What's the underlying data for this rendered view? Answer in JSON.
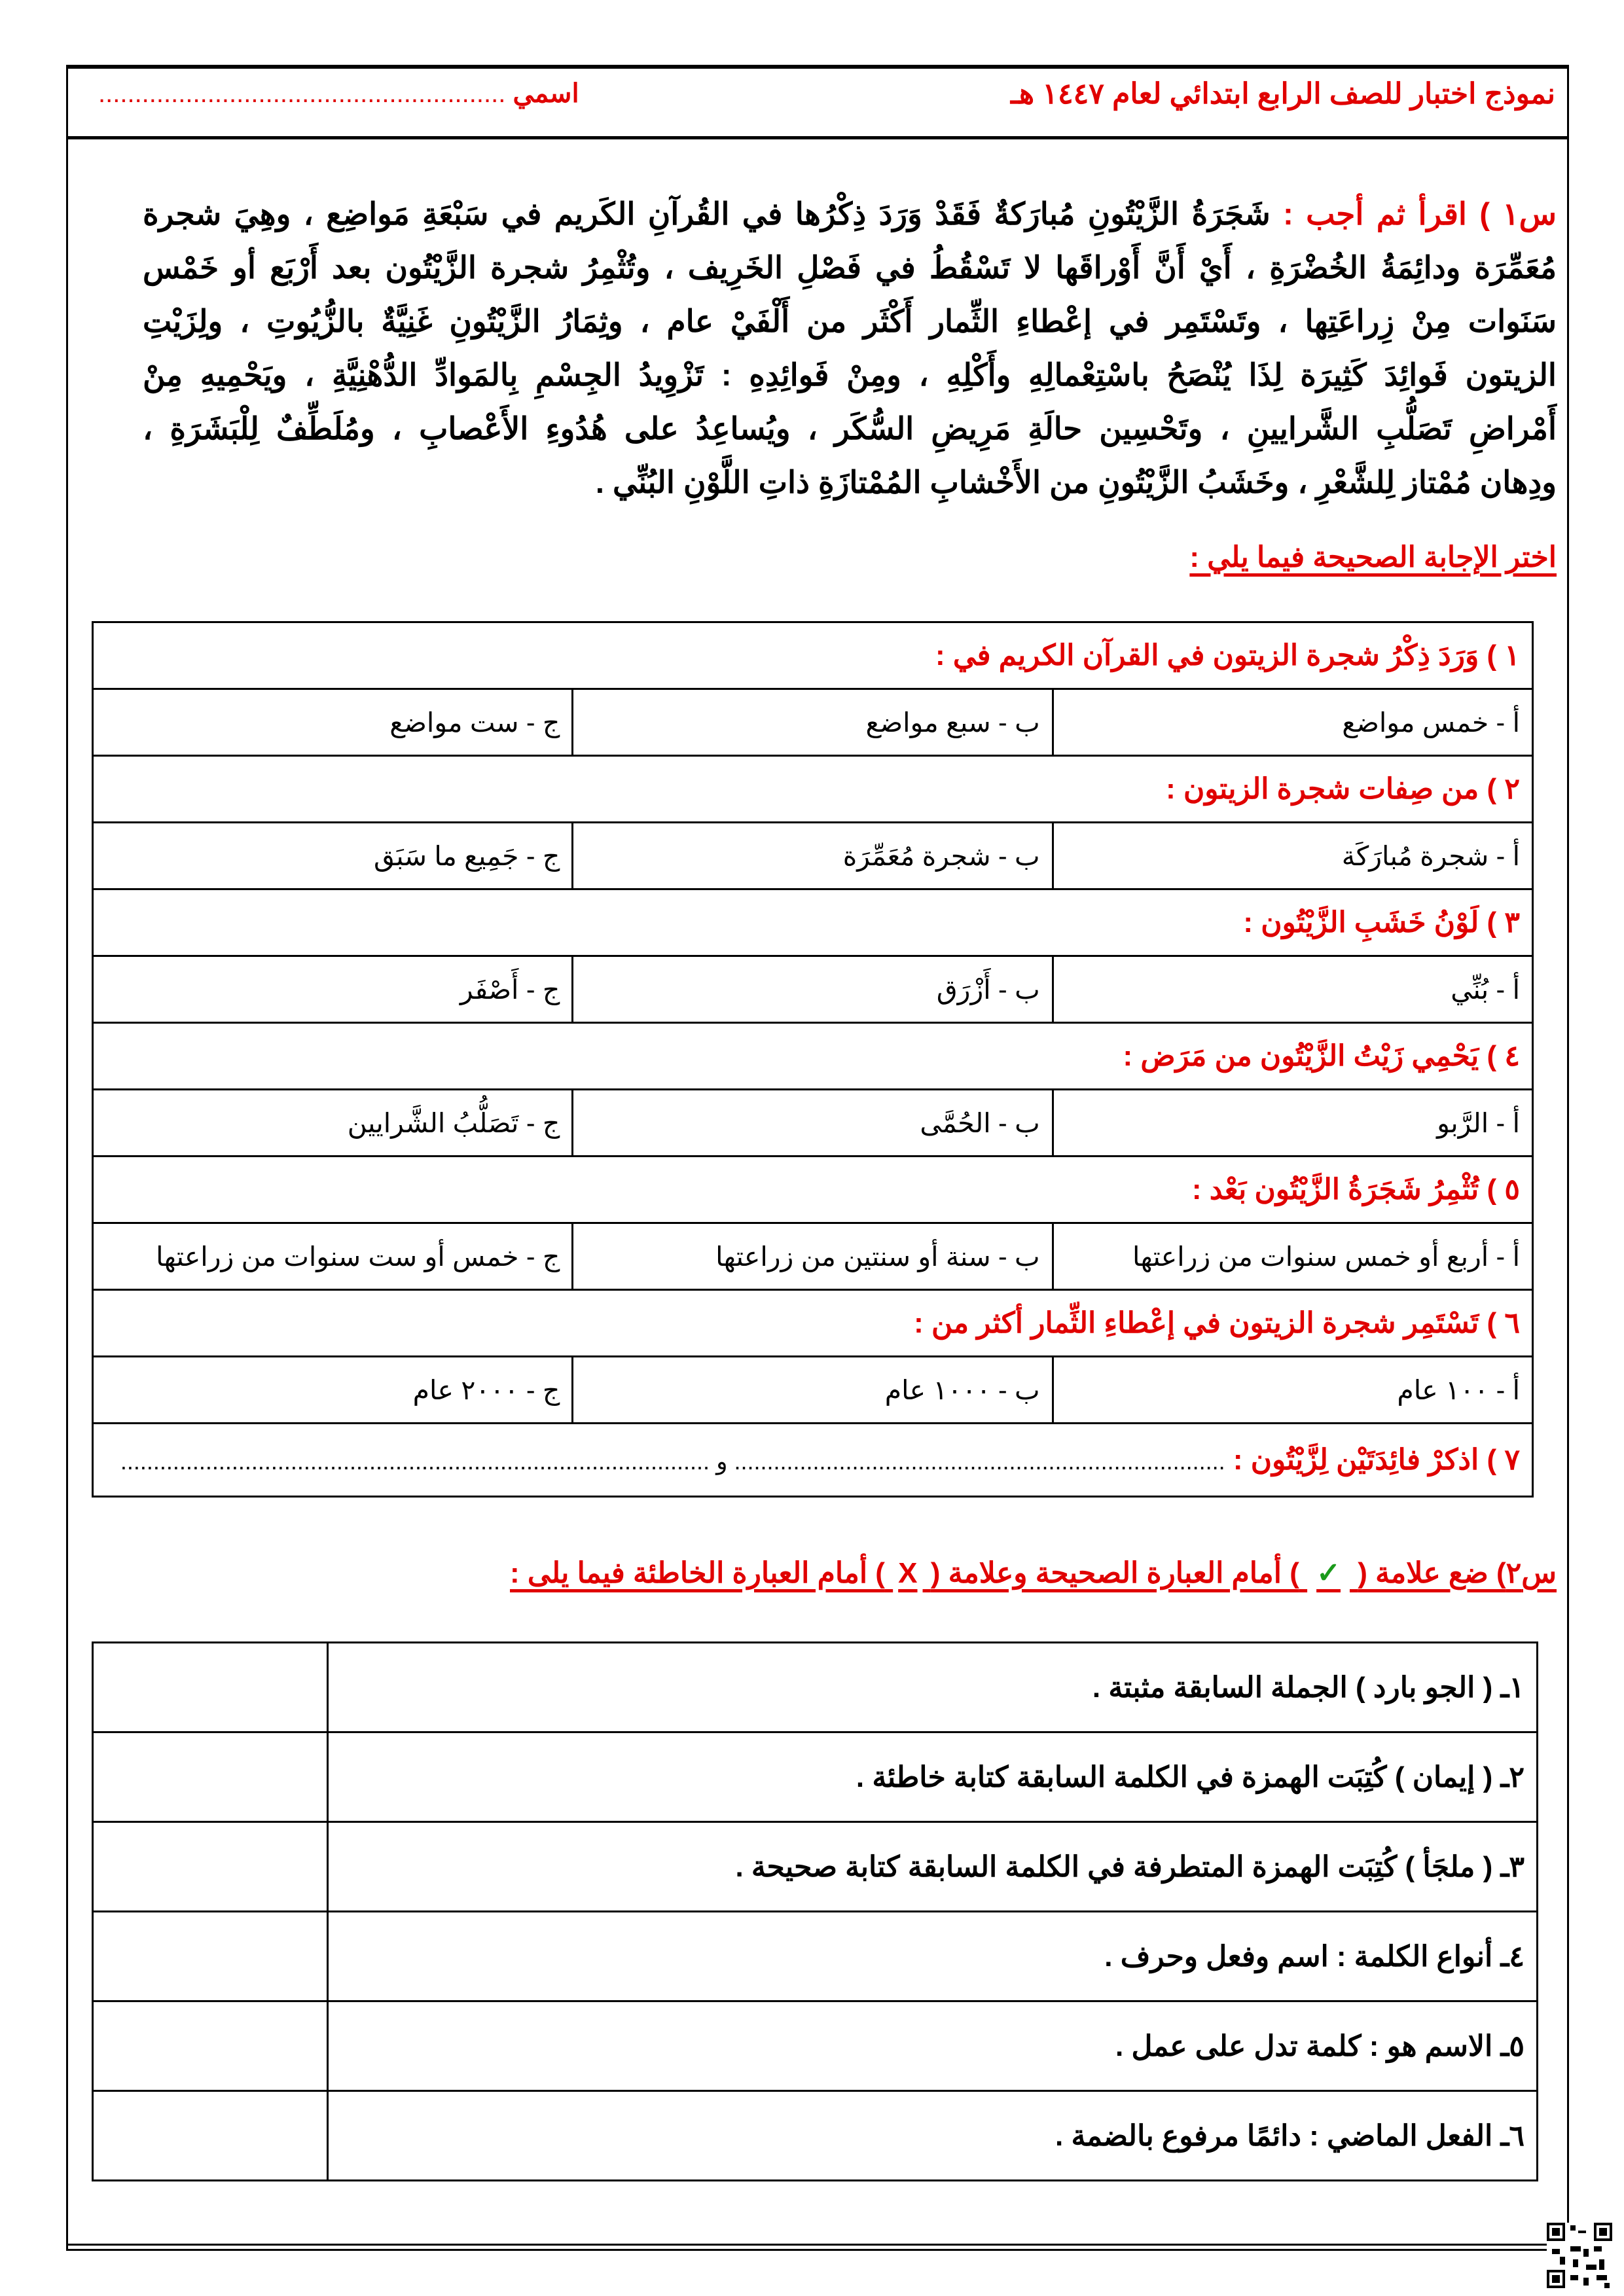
{
  "header": {
    "title": "نموذج اختبار للصف الرابع ابتدائي لعام ١٤٤٧ هـ",
    "name_label": "اسمي",
    "name_dots": "........................................................"
  },
  "q1": {
    "label": "س١ ) اقرأ ثم أجب : ",
    "lines": [
      "شَجَرَةُ الزَّيْتُونِ مُبارَكةٌ فَقَدْ وَرَدَ ذِكْرُها في القُرآنِ الكَريم في سَبْعَةِ مَواضِع ، وهِيَ شجرة",
      "مُعَمِّرَة ودائِمَةُ الخُضْرَةِ ، أَيْ أَنَّ أَوْراقَها لا تَسْقُطُ في فَصْلِ الخَرِيف ، وتُثْمِرُ شجرة الزَّيْتُون بعد أَرْبَع أو خَمْس",
      "سَنَوات مِنْ زِراعَتِها ، وتَسْتَمِر في إعْطاءِ الثِّمار أَكْثَر من أَلْفَيْ عام ، وثِمَارُ الزَّيْتُونِ غَنِيَّةٌ بالزُّيُوتِ ، ولِزَيْتِ",
      "الزيتون فَوائِدَ كَثِيرَة لِذَا يُنْصَحُ باسْتِعْمالِهِ وأَكْلِهِ ، ومِنْ فَوائِدِهِ : تَزْوِيدُ الجِسْمِ بِالمَوادِّ الدُّهْنِيَّةِ ، ويَحْمِيهِ مِنْ",
      "أَمْراضِ تَصَلُّبِ الشَّرايينِ ، وتَحْسِين حالَةِ مَرِيضِ السُّكَر ، ويُساعِدُ على هُدُوءِ الأَعْصابِ ، ومُلَطِّفٌ لِلْبَشَرَةِ ،",
      "ودِهان مُمْتاز لِلشَّعْرِ ، وخَشَبُ الزَّيْتُونِ من الأَخْشابِ المُمْتازَةِ ذاتِ اللَّوْنِ البُنِّي  ."
    ],
    "instruction": "اختر الإجابة الصحيحة فيما يلي :",
    "questions": [
      {
        "text": "١ ) وَرَدَ ذِكْرُ شجرة الزيتون في القرآن الكريم في :",
        "options": [
          "أ - خمس مواضع",
          "ب - سبع مواضع",
          "ج - ست مواضع"
        ]
      },
      {
        "text": "٢ ) من صِفات شجرة الزيتون :",
        "options": [
          "أ - شجرة مُبارَكَة",
          "ب - شجرة مُعَمِّرَة",
          "ج - جَمِيع ما سَبَق"
        ]
      },
      {
        "text": "٣ ) لَوْنُ خَشَبِ الزَّيْتُون :",
        "options": [
          "أ - بُنِّي",
          "ب - أَزْرَق",
          "ج - أَصْفَر"
        ]
      },
      {
        "text": "٤ ) يَحْمِي زَيْتُ الزَّيْتُون من مَرَض :",
        "options": [
          "أ - الرَّبو",
          "ب - الحُمَّى",
          "ج - تَصَلُّبُ الشَّرايين"
        ]
      },
      {
        "text": "٥ ) تُثْمِرُ شَجَرَةُ الزَّيْتُون بَعْد :",
        "options": [
          "أ - أربع أو خمس سنوات من زراعتها",
          "ب - سنة أو سنتين من زراعتها",
          "ج - خمس أو ست سنوات من زراعتها"
        ]
      },
      {
        "text": "٦ ) تَسْتَمِر شجرة الزيتون في إعْطاءِ الثِّمار أكثر من :",
        "options": [
          "أ - ١٠٠ عام",
          "ب - ١٠٠٠ عام",
          "ج - ٢٠٠٠ عام"
        ]
      }
    ],
    "q7": {
      "text": "٧ ) اذكرْ فائِدَتَيْن لِزَّيْتُون : ",
      "blank1": "...........................................................................",
      "and": " و ",
      "blank2": ".........................................................................................."
    }
  },
  "q2": {
    "header_part1": "س٢) ضع علامة (",
    "check_symbol": "✓",
    "header_part2": ")  أمام العبارة الصحيحة وعلامة (",
    "cross_symbol": "X",
    "header_part3": ") أمام العبارة الخاطئة فيما يلى :",
    "check_color": "#1a9a1a",
    "statements": [
      "١ـ ( الجو بارد ) الجملة السابقة مثبتة .",
      "٢ـ ( إيمان ) كُتِبَت الهمزة في الكلمة السابقة كتابة خاطئة .",
      "٣ـ ( ملجَأ ) كُتِبَت الهمزة المتطرفة في الكلمة السابقة كتابة صحيحة  .",
      "٤ـ أنواع الكلمة : اسم وفعل وحرف  .",
      "٥ـ الاسم هو : كلمة تدل على عمل  .",
      "٦ـ الفعل الماضي : دائمًا مرفوع بالضمة  ."
    ]
  },
  "colors": {
    "accent": "#e00000",
    "text": "#000000"
  },
  "icons": {
    "qr": "qr-code-icon"
  }
}
